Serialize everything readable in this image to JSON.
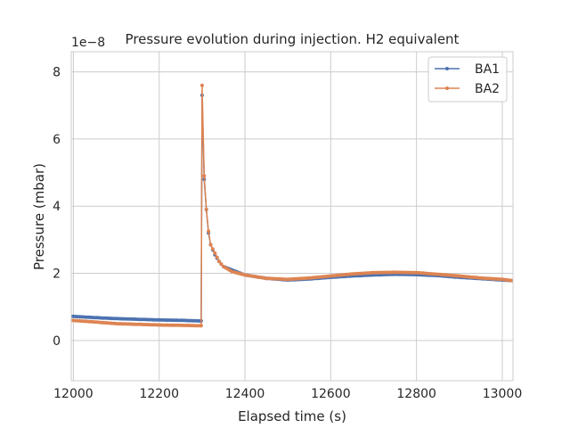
{
  "chart_data": {
    "type": "line",
    "title": "Pressure evolution during injection. H2 equivalent",
    "xlabel": "Elapsed time (s)",
    "ylabel": "Pressure (mbar)",
    "y_offset_text": "1e−8",
    "xlim": [
      11995,
      13025
    ],
    "ylim": [
      -1.2,
      8.6
    ],
    "xticks": [
      12000,
      12200,
      12400,
      12600,
      12800,
      13000
    ],
    "yticks": [
      0,
      2,
      4,
      6,
      8
    ],
    "grid": true,
    "legend_position": "top-right",
    "colors": {
      "BA1": "#4c72b0",
      "BA2": "#dd8452"
    },
    "series": [
      {
        "name": "BA1",
        "x": [
          11995,
          12050,
          12100,
          12150,
          12200,
          12250,
          12295,
          12298,
          12300,
          12305,
          12310,
          12315,
          12320,
          12330,
          12340,
          12350,
          12370,
          12400,
          12450,
          12500,
          12550,
          12600,
          12650,
          12700,
          12750,
          12800,
          12850,
          12900,
          12950,
          13000,
          13025
        ],
        "y": [
          0.72,
          0.68,
          0.65,
          0.63,
          0.61,
          0.6,
          0.58,
          0.58,
          7.3,
          4.8,
          3.9,
          3.2,
          2.85,
          2.55,
          2.35,
          2.2,
          2.1,
          1.95,
          1.85,
          1.8,
          1.83,
          1.88,
          1.92,
          1.95,
          1.97,
          1.96,
          1.93,
          1.88,
          1.84,
          1.8,
          1.78
        ]
      },
      {
        "name": "BA2",
        "x": [
          11995,
          12050,
          12100,
          12150,
          12200,
          12250,
          12295,
          12298,
          12300,
          12305,
          12310,
          12315,
          12320,
          12330,
          12340,
          12350,
          12370,
          12400,
          12450,
          12500,
          12550,
          12600,
          12650,
          12700,
          12750,
          12800,
          12850,
          12900,
          12950,
          13000,
          13025
        ],
        "y": [
          0.6,
          0.55,
          0.5,
          0.48,
          0.46,
          0.45,
          0.44,
          0.44,
          7.6,
          4.9,
          3.9,
          3.25,
          2.85,
          2.6,
          2.35,
          2.2,
          2.05,
          1.95,
          1.85,
          1.82,
          1.86,
          1.92,
          1.98,
          2.02,
          2.03,
          2.02,
          1.97,
          1.92,
          1.86,
          1.82,
          1.78
        ]
      }
    ]
  }
}
